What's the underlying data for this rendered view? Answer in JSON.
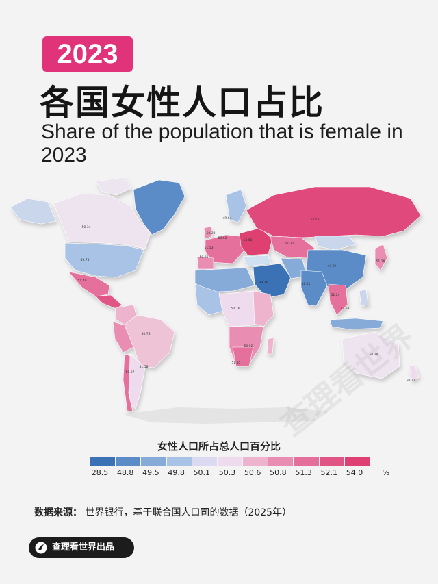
{
  "header": {
    "year": "2023",
    "title_zh": "各国女性人口占比",
    "title_en": "Share of the population that is female in 2023"
  },
  "map": {
    "region_values": [
      {
        "region": "Canada",
        "value": "50.34"
      },
      {
        "region": "United States",
        "value": "49.75"
      },
      {
        "region": "Mexico",
        "value": "51.49"
      },
      {
        "region": "Brazil",
        "value": "50.78"
      },
      {
        "region": "Argentina",
        "value": "50.37"
      },
      {
        "region": "Chile",
        "value": "51.58"
      },
      {
        "region": "Iceland/Norway",
        "value": "49.64"
      },
      {
        "region": "United Kingdom",
        "value": "50.29"
      },
      {
        "region": "France",
        "value": "51.53"
      },
      {
        "region": "Spain",
        "value": "50.95"
      },
      {
        "region": "Central Europe",
        "value": "50.62"
      },
      {
        "region": "Eastern Europe",
        "value": "53.58"
      },
      {
        "region": "Russia",
        "value": "53.56"
      },
      {
        "region": "Kazakhstan",
        "value": "51.31"
      },
      {
        "region": "China",
        "value": "49.02"
      },
      {
        "region": "Japan",
        "value": "51.18"
      },
      {
        "region": "India",
        "value": "48.41"
      },
      {
        "region": "Saudi Arabia",
        "value": "39.36"
      },
      {
        "region": "Central Africa",
        "value": "50.16"
      },
      {
        "region": "South Africa",
        "value": "51.35"
      },
      {
        "region": "Mozambique",
        "value": "50.82"
      },
      {
        "region": "Indochina",
        "value": "51.24"
      },
      {
        "region": "Indonesia",
        "value": "47.58"
      },
      {
        "region": "Australia",
        "value": "50.38"
      },
      {
        "region": "New Zealand",
        "value": "50.32"
      }
    ],
    "watermark": "查理看世界"
  },
  "legend": {
    "title": "女性人口所占总人口百分比",
    "colors": [
      "#3a72b5",
      "#5b8cc8",
      "#87abd9",
      "#a9c3e6",
      "#dcdaf0",
      "#eedcee",
      "#eeb3cd",
      "#e98eb2",
      "#e46f9b",
      "#e05586",
      "#df3f72"
    ],
    "labels": [
      "28.5",
      "48.8",
      "49.5",
      "49.8",
      "50.1",
      "50.3",
      "50.6",
      "50.8",
      "51.3",
      "52.1",
      "54.0"
    ],
    "unit": "%"
  },
  "source": {
    "label": "数据来源：",
    "text": "世界银行，基于联合国人口司的数据（2025年）"
  },
  "brand": {
    "name": "查理看世界出品"
  }
}
